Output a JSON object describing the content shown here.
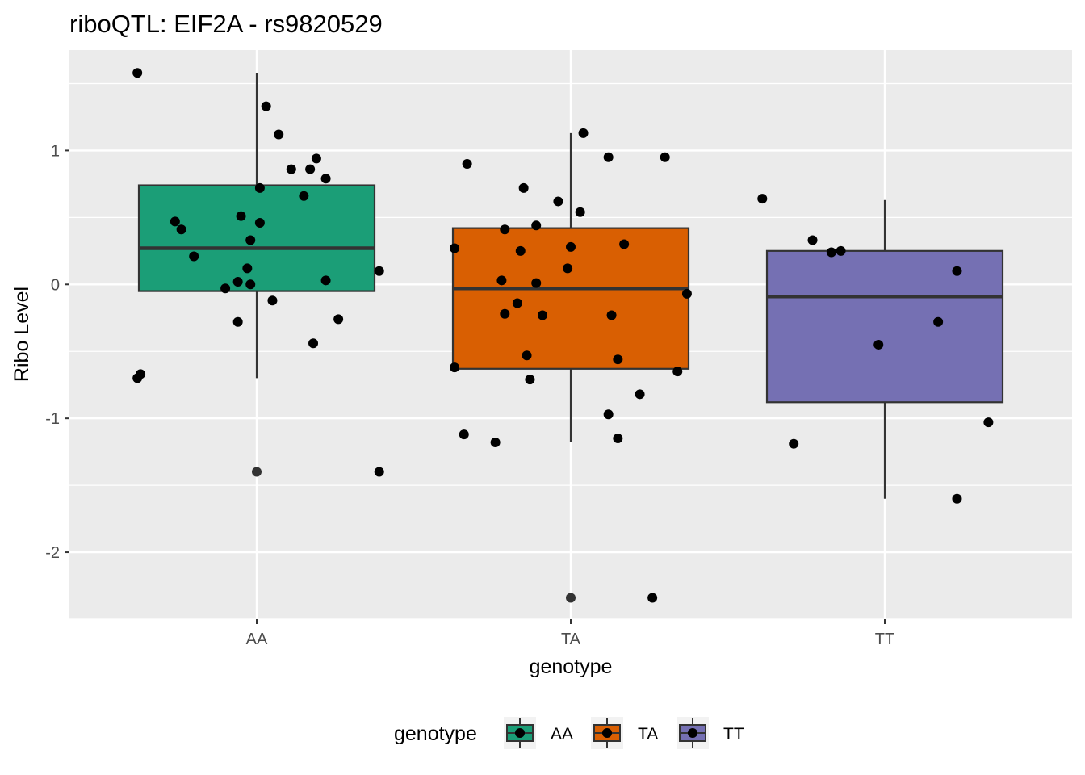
{
  "chart_data": {
    "type": "box",
    "title": "riboQTL: EIF2A - rs9820529",
    "xlabel": "genotype",
    "ylabel": "Ribo Level",
    "categories": [
      "AA",
      "TA",
      "TT"
    ],
    "ylim": [
      -2.5,
      1.75
    ],
    "yticks": [
      -2,
      -1,
      0,
      1
    ],
    "grid": true,
    "legend": {
      "title": "genotype",
      "position": "bottom",
      "entries": [
        "AA",
        "TA",
        "TT"
      ]
    },
    "colors": {
      "AA": "#1b9e77",
      "TA": "#d95f02",
      "TT": "#7570b3",
      "panel": "#ebebeb",
      "grid": "#ffffff"
    },
    "series": [
      {
        "category": "AA",
        "box": {
          "lower_whisker": -0.7,
          "q1": -0.05,
          "median": 0.27,
          "q3": 0.74,
          "upper_whisker": 1.58
        },
        "outliers": [
          -1.4
        ],
        "points": [
          [
            -0.38,
            1.58
          ],
          [
            0.03,
            1.33
          ],
          [
            0.07,
            1.12
          ],
          [
            0.11,
            0.86
          ],
          [
            0.17,
            0.86
          ],
          [
            0.19,
            0.94
          ],
          [
            0.22,
            0.79
          ],
          [
            0.01,
            0.72
          ],
          [
            0.15,
            0.66
          ],
          [
            -0.26,
            0.47
          ],
          [
            -0.24,
            0.41
          ],
          [
            -0.05,
            0.51
          ],
          [
            0.01,
            0.46
          ],
          [
            -0.02,
            0.33
          ],
          [
            -0.2,
            0.21
          ],
          [
            -0.03,
            0.12
          ],
          [
            0.39,
            0.1
          ],
          [
            -0.06,
            0.02
          ],
          [
            -0.02,
            0.0
          ],
          [
            -0.1,
            -0.03
          ],
          [
            0.22,
            0.03
          ],
          [
            0.05,
            -0.12
          ],
          [
            0.26,
            -0.26
          ],
          [
            -0.06,
            -0.28
          ],
          [
            0.18,
            -0.44
          ],
          [
            -0.37,
            -0.67
          ],
          [
            -0.38,
            -0.7
          ],
          [
            0.39,
            -1.4
          ]
        ]
      },
      {
        "category": "TA",
        "box": {
          "lower_whisker": -1.18,
          "q1": -0.63,
          "median": -0.03,
          "q3": 0.42,
          "upper_whisker": 1.13
        },
        "outliers": [
          -2.34
        ],
        "points": [
          [
            0.04,
            1.13
          ],
          [
            0.12,
            0.95
          ],
          [
            0.3,
            0.95
          ],
          [
            -0.33,
            0.9
          ],
          [
            -0.15,
            0.72
          ],
          [
            -0.04,
            0.62
          ],
          [
            0.03,
            0.54
          ],
          [
            -0.11,
            0.44
          ],
          [
            -0.21,
            0.41
          ],
          [
            -0.37,
            0.27
          ],
          [
            -0.16,
            0.25
          ],
          [
            0.0,
            0.28
          ],
          [
            0.17,
            0.3
          ],
          [
            -0.01,
            0.12
          ],
          [
            -0.22,
            0.03
          ],
          [
            -0.11,
            0.01
          ],
          [
            0.37,
            -0.07
          ],
          [
            -0.17,
            -0.14
          ],
          [
            -0.21,
            -0.22
          ],
          [
            -0.09,
            -0.23
          ],
          [
            0.13,
            -0.23
          ],
          [
            -0.14,
            -0.53
          ],
          [
            0.15,
            -0.56
          ],
          [
            -0.37,
            -0.62
          ],
          [
            0.34,
            -0.65
          ],
          [
            -0.13,
            -0.71
          ],
          [
            0.22,
            -0.82
          ],
          [
            0.12,
            -0.97
          ],
          [
            -0.34,
            -1.12
          ],
          [
            0.15,
            -1.15
          ],
          [
            -0.24,
            -1.18
          ],
          [
            0.26,
            -2.34
          ]
        ]
      },
      {
        "category": "TT",
        "box": {
          "lower_whisker": -1.6,
          "q1": -0.88,
          "median": -0.09,
          "q3": 0.25,
          "upper_whisker": 0.63
        },
        "outliers": [],
        "points": [
          [
            -0.39,
            0.64
          ],
          [
            -0.23,
            0.33
          ],
          [
            -0.17,
            0.24
          ],
          [
            -0.14,
            0.25
          ],
          [
            0.23,
            0.1
          ],
          [
            -0.02,
            -0.45
          ],
          [
            0.17,
            -0.28
          ],
          [
            0.33,
            -1.03
          ],
          [
            -0.29,
            -1.19
          ],
          [
            0.23,
            -1.6
          ]
        ]
      }
    ]
  }
}
